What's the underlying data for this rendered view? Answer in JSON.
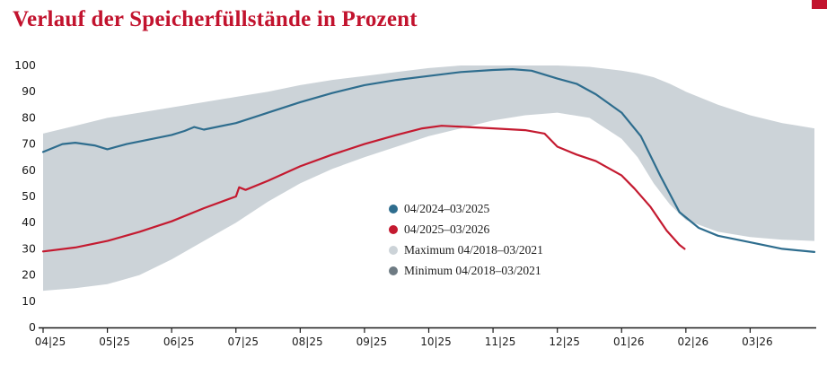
{
  "page": {
    "background": "#ffffff",
    "accent_color": "#c2132e"
  },
  "chart_data": {
    "type": "line",
    "title": "Verlauf der Speicherfüllstände in Prozent",
    "title_color": "#c2132e",
    "xlabel": "",
    "ylabel": "",
    "ylim": [
      0,
      100
    ],
    "y_ticks": [
      0,
      10,
      20,
      30,
      40,
      50,
      60,
      70,
      80,
      90,
      100
    ],
    "x_ticks": [
      "04|25",
      "05|25",
      "06|25",
      "07|25",
      "08|25",
      "09|25",
      "10|25",
      "11|25",
      "12|25",
      "01|26",
      "02|26",
      "03|26"
    ],
    "x_unit_months": 12,
    "grid": false,
    "legend_position": "inside-center",
    "band": {
      "label_max": "Maximum 04/2018–03/2021",
      "label_min": "Minimum 04/2018–03/2021",
      "color": "#ccd3d8",
      "x": [
        0,
        0.5,
        1,
        1.5,
        2,
        2.5,
        3,
        3.5,
        4,
        4.5,
        5,
        5.5,
        6,
        6.5,
        7,
        7.5,
        8,
        8.5,
        9,
        9.25,
        9.5,
        9.75,
        10,
        10.5,
        11,
        11.5,
        12
      ],
      "max": [
        74,
        77,
        80,
        82,
        84,
        86,
        88,
        90,
        92.5,
        94.5,
        96,
        97.5,
        99,
        100,
        100,
        100,
        100,
        99.5,
        98,
        97,
        95.5,
        93,
        90,
        85,
        81,
        78,
        76
      ],
      "min": [
        14,
        15,
        16.5,
        20,
        26,
        33,
        40,
        48,
        55,
        60.5,
        65,
        69,
        73,
        76,
        79,
        81,
        82,
        80,
        72,
        65,
        55,
        47,
        41,
        36.5,
        34.5,
        33.5,
        33
      ]
    },
    "series": [
      {
        "name": "04/2024–03/2025",
        "color": "#2e6d8e",
        "x": [
          0,
          0.3,
          0.5,
          0.8,
          1.0,
          1.3,
          1.5,
          2.0,
          2.2,
          2.35,
          2.5,
          3.0,
          3.5,
          4.0,
          4.5,
          5.0,
          5.5,
          6.0,
          6.5,
          7.0,
          7.3,
          7.6,
          8.0,
          8.3,
          8.6,
          9.0,
          9.3,
          9.6,
          9.9,
          10.2,
          10.5,
          11.0,
          11.5,
          12.0
        ],
        "values": [
          67,
          70,
          70.5,
          69.5,
          68,
          70,
          71,
          73.5,
          75,
          76.5,
          75.5,
          78,
          82,
          86,
          89.5,
          92.5,
          94.5,
          96,
          97.5,
          98.3,
          98.6,
          98,
          95,
          93,
          89,
          82,
          73,
          58,
          44,
          38,
          35,
          32.5,
          30,
          28.8
        ]
      },
      {
        "name": "04/2025–03/2026",
        "color": "#c41a30",
        "x": [
          0,
          0.5,
          1.0,
          1.5,
          2.0,
          2.5,
          3.0,
          3.05,
          3.15,
          3.5,
          4.0,
          4.5,
          5.0,
          5.5,
          5.9,
          6.2,
          6.6,
          7.0,
          7.5,
          7.8,
          8.0,
          8.3,
          8.6,
          9.0,
          9.2,
          9.45,
          9.7,
          9.9,
          9.98
        ],
        "values": [
          29,
          30.5,
          33,
          36.5,
          40.5,
          45.5,
          50,
          53.5,
          52.5,
          56,
          61.5,
          66,
          70,
          73.5,
          76,
          77,
          76.5,
          76,
          75.3,
          74,
          69,
          66,
          63.5,
          58,
          53,
          46,
          37,
          31.5,
          30
        ]
      }
    ],
    "legend": [
      {
        "label": "04/2024–03/2025",
        "color": "#2e6d8e"
      },
      {
        "label": "04/2025–03/2026",
        "color": "#c41a30"
      },
      {
        "label": "Maximum 04/2018–03/2021",
        "color": "#ccd3d8"
      },
      {
        "label": "Minimum 04/2018–03/2021",
        "color": "#6e7b83"
      }
    ],
    "axis_color": "#1a1a1a",
    "tick_label_color": "#1a1a1a"
  }
}
